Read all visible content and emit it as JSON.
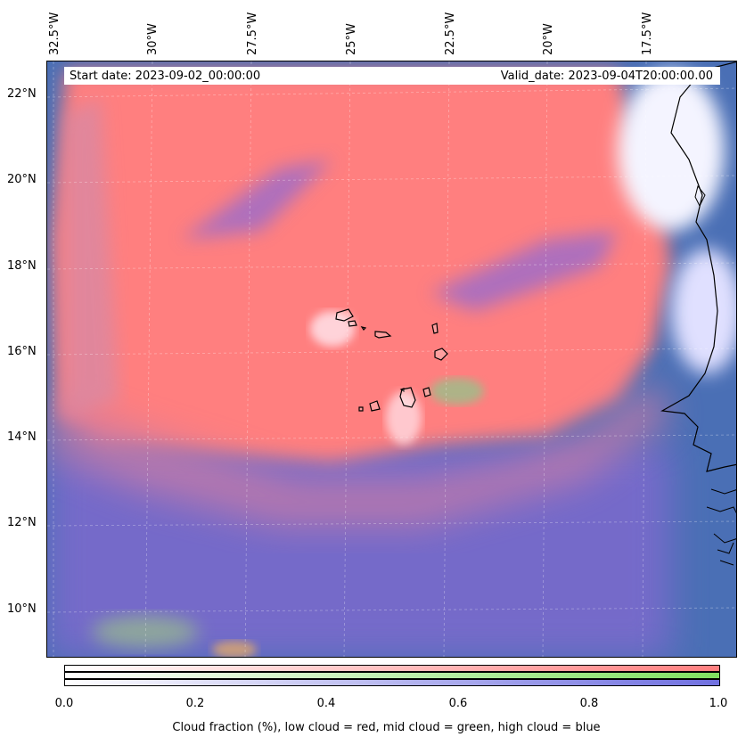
{
  "map": {
    "start_date": "Start date: 2023-09-02_00:00:00",
    "valid_date": "Valid_date: 2023-09-04T20:00:00.00",
    "longitude_labels": [
      "32.5°W",
      "30°W",
      "27.5°W",
      "25°W",
      "22.5°W",
      "20°W",
      "17.5°W"
    ],
    "latitude_labels": [
      "22°N",
      "20°N",
      "18°N",
      "16°N",
      "14°N",
      "12°N",
      "10°N"
    ],
    "colors": {
      "low_cloud": "#ff7f7f",
      "mid_cloud": "#80e080",
      "high_cloud": "#7070e0",
      "clear_ocean": "#3f6fb0"
    }
  },
  "colorbar": {
    "ticks": [
      "0.0",
      "0.2",
      "0.4",
      "0.6",
      "0.8",
      "1.0"
    ],
    "label": "Cloud fraction (%), low cloud = red, mid cloud = green, high cloud = blue"
  }
}
